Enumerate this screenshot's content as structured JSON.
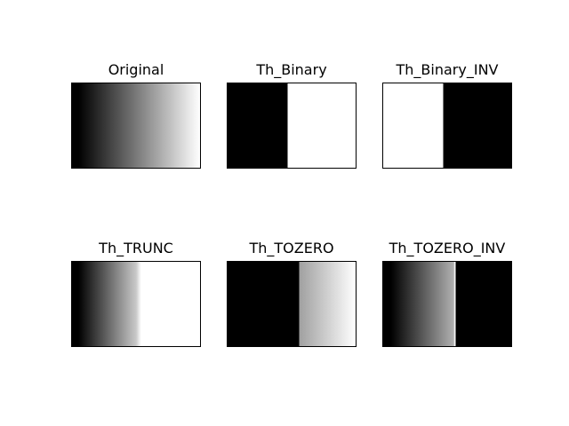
{
  "figure": {
    "panels": [
      {
        "title": "Original"
      },
      {
        "title": "Th_Binary"
      },
      {
        "title": "Th_Binary_INV"
      },
      {
        "title": "Th_TRUNC"
      },
      {
        "title": "Th_TOZERO"
      },
      {
        "title": "Th_TOZERO_INV"
      }
    ]
  }
}
